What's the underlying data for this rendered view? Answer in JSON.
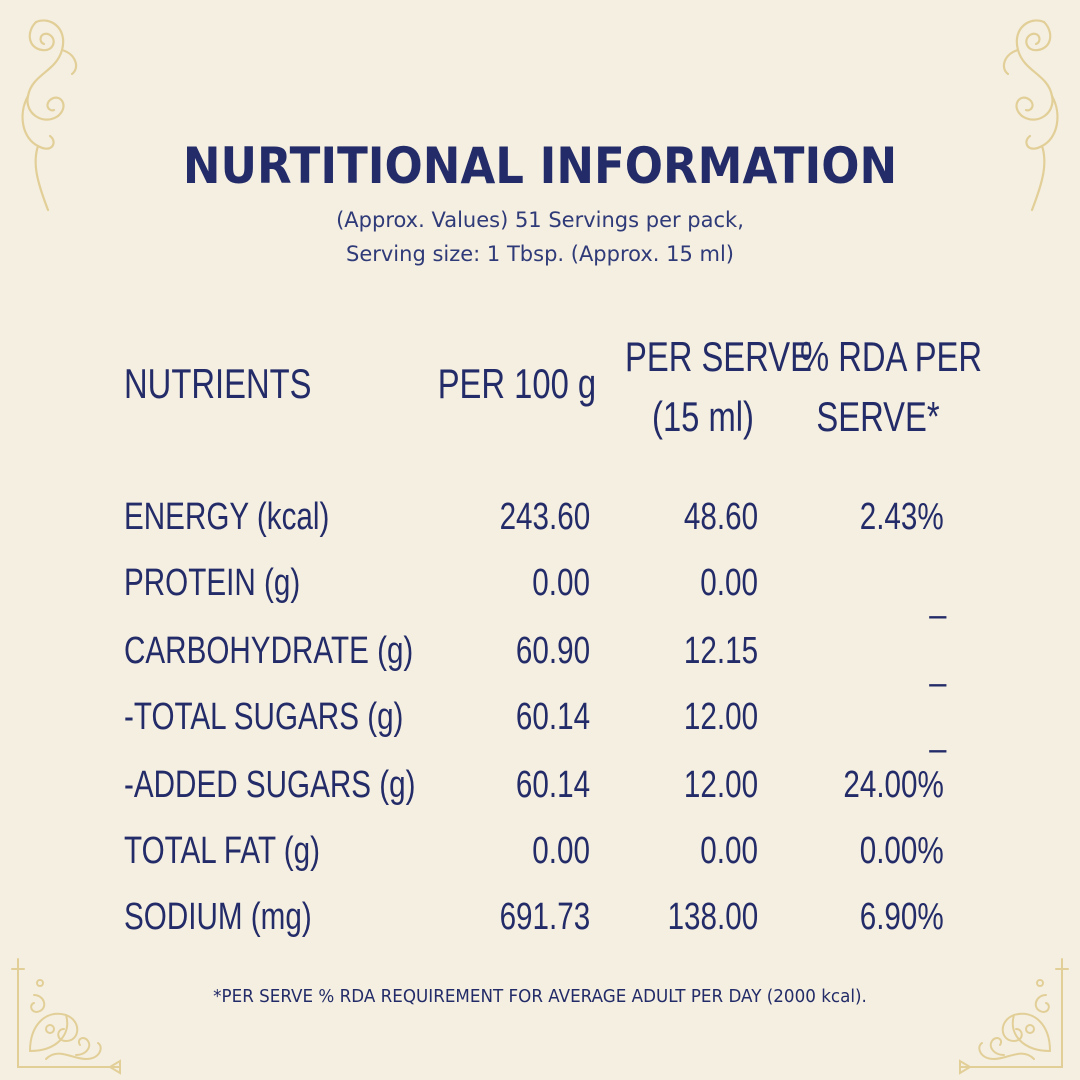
{
  "title": "NURTITIONAL INFORMATION",
  "subtitle_line1": "(Approx. Values) 51 Servings per pack,",
  "subtitle_line2": "Serving size: 1 Tbsp. (Approx. 15 ml)",
  "table": {
    "headers": {
      "nutrients": "NUTRIENTS",
      "per100g": "PER 100 g",
      "per_serve_line1": "PER SERVE",
      "per_serve_line2": "(15 ml)",
      "rda_line1": "% RDA PER",
      "rda_line2": "SERVE*"
    },
    "rows": [
      {
        "name": "ENERGY (kcal)",
        "per100g": "243.60",
        "per_serve": "48.60",
        "rda": "2.43%"
      },
      {
        "name": "PROTEIN (g)",
        "per100g": "0.00",
        "per_serve": "0.00",
        "rda": "_"
      },
      {
        "name": "CARBOHYDRATE (g)",
        "per100g": "60.90",
        "per_serve": "12.15",
        "rda": "_"
      },
      {
        "name": "-TOTAL SUGARS (g)",
        "per100g": "60.14",
        "per_serve": "12.00",
        "rda": "_"
      },
      {
        "name": "-ADDED SUGARS (g)",
        "per100g": "60.14",
        "per_serve": "12.00",
        "rda": "24.00%"
      },
      {
        "name": "TOTAL FAT (g)",
        "per100g": "0.00",
        "per_serve": "0.00",
        "rda": "0.00%"
      },
      {
        "name": "SODIUM (mg)",
        "per100g": "691.73",
        "per_serve": "138.00",
        "rda": "6.90%"
      }
    ]
  },
  "footnote": "*PER SERVE % RDA REQUIREMENT FOR AVERAGE ADULT PER DAY (2000 kcal).",
  "colors": {
    "background": "#f5efe1",
    "text": "#232c68",
    "ornament": "#e2cf98"
  },
  "icons": [
    "swirl-ornament-icon",
    "filigree-corner-icon"
  ]
}
